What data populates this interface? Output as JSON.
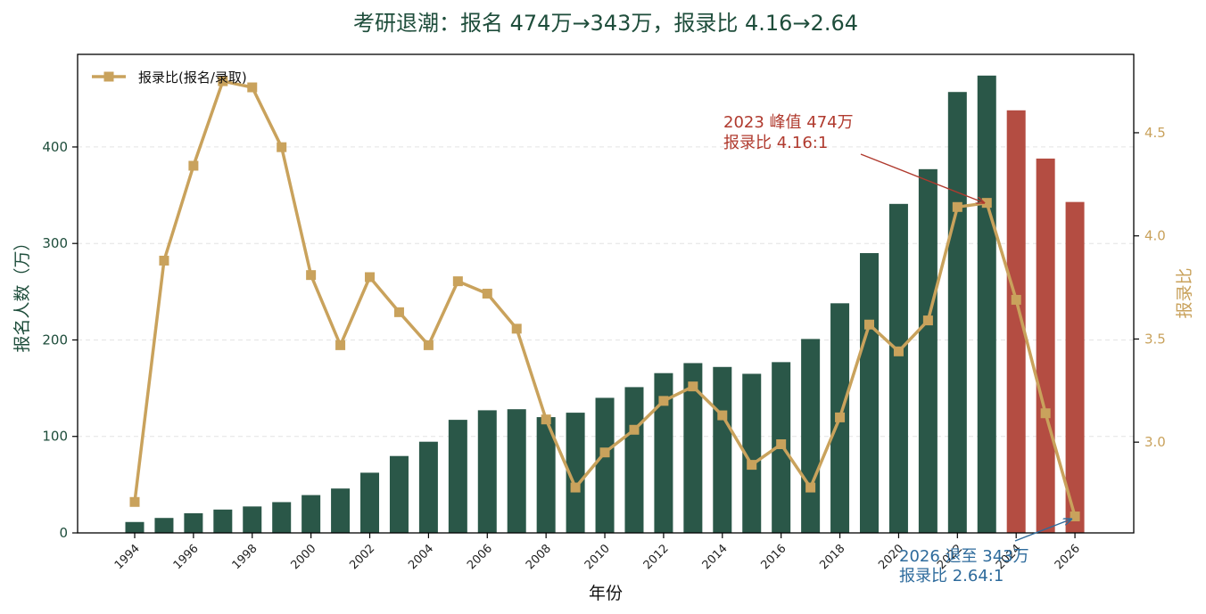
{
  "chart_data": {
    "type": "bar+line",
    "title": "考研退潮：报名 474万→343万，报录比 4.16→2.64",
    "xlabel": "年份",
    "ylabel_left": "报名人数（万）",
    "ylabel_right": "报录比",
    "x": [
      1994,
      1995,
      1996,
      1997,
      1998,
      1999,
      2000,
      2001,
      2002,
      2003,
      2004,
      2005,
      2006,
      2007,
      2008,
      2009,
      2010,
      2011,
      2012,
      2013,
      2014,
      2015,
      2016,
      2017,
      2018,
      2019,
      2020,
      2021,
      2022,
      2023,
      2024,
      2025,
      2026
    ],
    "x_tick_labels": [
      "1994",
      "1996",
      "1998",
      "2000",
      "2002",
      "2004",
      "2006",
      "2008",
      "2010",
      "2012",
      "2014",
      "2016",
      "2018",
      "2020",
      "2022",
      "2024",
      "2026"
    ],
    "series": [
      {
        "axis": "left",
        "kind": "bar",
        "values": [
          11.3,
          15.5,
          20.4,
          24.2,
          27.4,
          31.9,
          39.2,
          46.0,
          62.4,
          79.7,
          94.5,
          117.2,
          127.1,
          128.2,
          120.0,
          124.6,
          140.0,
          151.1,
          165.6,
          176.0,
          172.0,
          164.9,
          177.0,
          201.0,
          238.0,
          290.0,
          341.0,
          377.0,
          457.0,
          474.0,
          438.0,
          388.0,
          343.0
        ],
        "colors": {
          "normal": "#2a5748",
          "decline": "#b44d42"
        },
        "decline_from_index": 30
      },
      {
        "axis": "right",
        "kind": "line",
        "name": "报录比(报名/录取)",
        "values": [
          2.71,
          3.88,
          4.34,
          4.75,
          4.72,
          4.43,
          3.81,
          3.47,
          3.8,
          3.63,
          3.47,
          3.78,
          3.72,
          3.55,
          3.11,
          2.78,
          2.95,
          3.06,
          3.2,
          3.27,
          3.13,
          2.89,
          2.99,
          2.78,
          3.12,
          3.57,
          3.44,
          3.59,
          4.14,
          4.16,
          3.69,
          3.14,
          2.64
        ],
        "color": "#c9a25c"
      }
    ],
    "ylim_left": [
      0,
      496
    ],
    "yticks_left": [
      0,
      100,
      200,
      300,
      400
    ],
    "ylim_right": [
      2.56,
      4.88
    ],
    "yticks_right": [
      3.0,
      3.5,
      4.0,
      4.5
    ],
    "grid": "horizontal-dashed",
    "legend": "top-left",
    "annotations": [
      {
        "lines": [
          "2023 峰值 474万",
          "报录比 4.16:1"
        ],
        "x": 2023,
        "y": 4.16,
        "color": "#b03a2e"
      },
      {
        "lines": [
          "2026 退至 343万",
          "报录比 2.64:1"
        ],
        "x": 2026,
        "y": 2.64,
        "color": "#2e6b9c"
      }
    ],
    "colors": {
      "title": "#1e4d3b",
      "left_axis": "#1e4d3b",
      "right_axis": "#c9a25c"
    }
  }
}
